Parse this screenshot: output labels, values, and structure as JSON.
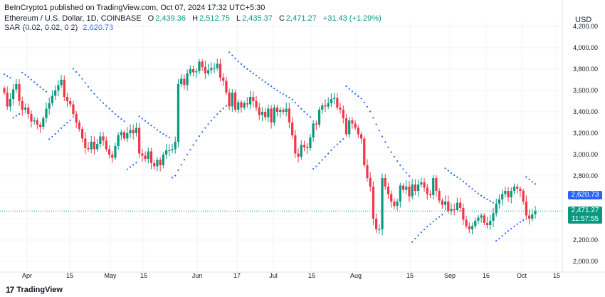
{
  "header": {
    "publisher_line": "BeInCrypto1 published on TradingView.com, Oct 07, 2024 17:32 UTC+5:30",
    "symbol": "Ethereum / U.S. Dollar, 1D, COINBASE",
    "o_label": "O",
    "o_value": "2,439.36",
    "h_label": "H",
    "h_value": "2,512.75",
    "l_label": "L",
    "l_value": "2,435.37",
    "c_label": "C",
    "c_value": "2,471.27",
    "change": "+31.43 (+1.29%)",
    "indicator_label": "SAR (0.02, 0.02, 0.2)",
    "indicator_value": "2,620.73"
  },
  "axis": {
    "currency": "USD"
  },
  "price_tags": {
    "sar": "2,620.73",
    "last": "2,471.27",
    "countdown": "11:57:55"
  },
  "footer": {
    "brand": "TradingView",
    "logo_text": "17"
  },
  "colors": {
    "up": "#089981",
    "down": "#f23645",
    "sar": "#2962ff",
    "last": "#089981"
  },
  "chart_data": {
    "type": "candlestick",
    "title": "Ethereum / U.S. Dollar, 1D, COINBASE",
    "ylabel": "USD",
    "ylim": [
      1900,
      4350
    ],
    "y_ticks": [
      "2,000.00",
      "2,200.00",
      "2,400.00",
      "2,600.00",
      "2,800.00",
      "3,000.00",
      "3,200.00",
      "3,400.00",
      "3,600.00",
      "3,800.00",
      "4,000.00",
      "4,200.00"
    ],
    "x_ticks": [
      "Apr",
      "15",
      "May",
      "15",
      "Jun",
      "17",
      "Jul",
      "15",
      "Aug",
      "15",
      "Sep",
      "16",
      "Oct",
      "15"
    ],
    "grid": true,
    "candles_close": [
      3580,
      3450,
      3520,
      3610,
      3660,
      3500,
      3420,
      3440,
      3380,
      3310,
      3320,
      3280,
      3260,
      3340,
      3430,
      3480,
      3550,
      3600,
      3650,
      3700,
      3540,
      3500,
      3470,
      3380,
      3300,
      3240,
      3150,
      3060,
      3050,
      3120,
      3050,
      3100,
      3170,
      3130,
      3050,
      3000,
      2970,
      3080,
      3180,
      3210,
      3150,
      3200,
      3230,
      3200,
      3250,
      3010,
      2990,
      2960,
      3030,
      2920,
      2890,
      2950,
      2900,
      3000,
      3040,
      3040,
      3050,
      3120,
      3660,
      3710,
      3650,
      3760,
      3800,
      3770,
      3780,
      3870,
      3820,
      3760,
      3790,
      3810,
      3810,
      3850,
      3720,
      3690,
      3580,
      3450,
      3580,
      3420,
      3490,
      3440,
      3480,
      3470,
      3540,
      3500,
      3440,
      3370,
      3400,
      3350,
      3430,
      3300,
      3440,
      3400,
      3420,
      3400,
      3430,
      3300,
      3180,
      3010,
      2980,
      3090,
      3070,
      3060,
      3160,
      3290,
      3280,
      3420,
      3460,
      3450,
      3480,
      3520,
      3530,
      3440,
      3420,
      3340,
      3190,
      3320,
      3290,
      3250,
      3190,
      3150,
      2900,
      2780,
      2700,
      2400,
      2300,
      2300,
      2780,
      2700,
      2630,
      2560,
      2520,
      2560,
      2710,
      2670,
      2700,
      2610,
      2720,
      2660,
      2720,
      2740,
      2690,
      2630,
      2620,
      2780,
      2660,
      2570,
      2530,
      2560,
      2470,
      2490,
      2480,
      2550,
      2500,
      2390,
      2330,
      2300,
      2330,
      2380,
      2410,
      2430,
      2360,
      2340,
      2380,
      2450,
      2540,
      2580,
      2630,
      2660,
      2600,
      2660,
      2700,
      2680,
      2660,
      2560,
      2430,
      2400,
      2440,
      2470
    ],
    "sar_last": 2620.73,
    "last_close": 2471.27
  }
}
